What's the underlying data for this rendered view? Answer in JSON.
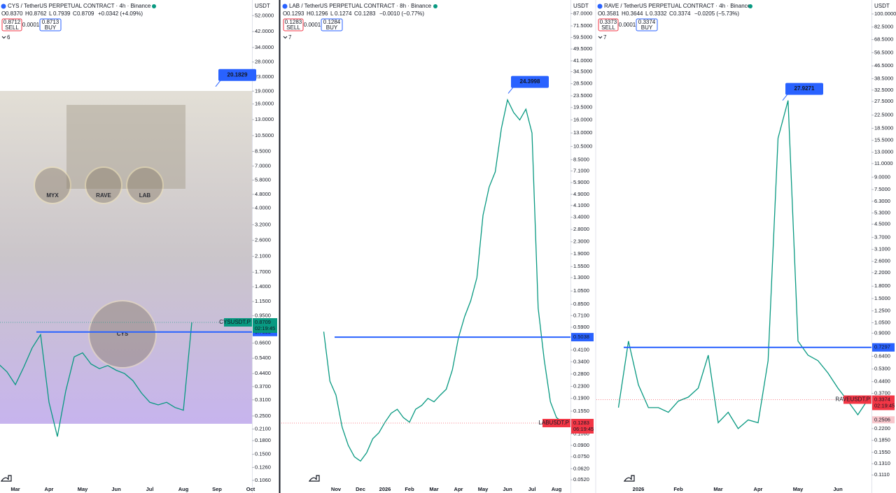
{
  "ui": {
    "sell": "SELL",
    "buy": "BUY",
    "ohlc_labels": [
      "O",
      "H",
      "L",
      "C"
    ]
  },
  "chart_data": [
    {
      "type": "line",
      "title": "CYS / TetherUS PERPETUAL CONTRACT · 4h · Binance",
      "ohlc": [
        "0.8370",
        "0.8762",
        "0.7939",
        "0.8709"
      ],
      "change": "+0.0342 (+4.09%)",
      "sell": "0.8712",
      "spread": "0.0001",
      "buy": "0.8713",
      "interval": "6",
      "currency": "USDT",
      "log": true,
      "ylim": [
        0.103,
        64
      ],
      "yticks": [
        {
          "value": 52,
          "label": "52.0000"
        },
        {
          "value": 42,
          "label": "42.0000"
        },
        {
          "value": 34,
          "label": "34.0000"
        },
        {
          "value": 28,
          "label": "28.0000"
        },
        {
          "value": 23,
          "label": "23.0000"
        },
        {
          "value": 19,
          "label": "19.0000"
        },
        {
          "value": 16,
          "label": "16.0000"
        },
        {
          "value": 13,
          "label": "13.0000"
        },
        {
          "value": 10.5,
          "label": "10.5000"
        },
        {
          "value": 8.5,
          "label": "8.5000"
        },
        {
          "value": 7,
          "label": "7.0000"
        },
        {
          "value": 5.8,
          "label": "5.8000"
        },
        {
          "value": 4.8,
          "label": "4.8000"
        },
        {
          "value": 4,
          "label": "4.0000"
        },
        {
          "value": 3.2,
          "label": "3.2000"
        },
        {
          "value": 2.6,
          "label": "2.6000"
        },
        {
          "value": 2.1,
          "label": "2.1000"
        },
        {
          "value": 1.7,
          "label": "1.7000"
        },
        {
          "value": 1.4,
          "label": "1.4000"
        },
        {
          "value": 1.15,
          "label": "1.1500"
        },
        {
          "value": 0.95,
          "label": "0.9500"
        },
        {
          "value": 0.66,
          "label": "0.6600"
        },
        {
          "value": 0.54,
          "label": "0.5400"
        },
        {
          "value": 0.44,
          "label": "0.4400"
        },
        {
          "value": 0.37,
          "label": "0.3700"
        },
        {
          "value": 0.31,
          "label": "0.3100"
        },
        {
          "value": 0.25,
          "label": "0.2500"
        },
        {
          "value": 0.21,
          "label": "0.2100"
        },
        {
          "value": 0.18,
          "label": "0.1800"
        },
        {
          "value": 0.15,
          "label": "0.1500"
        },
        {
          "value": 0.126,
          "label": "0.1260"
        },
        {
          "value": 0.106,
          "label": "0.1060"
        }
      ],
      "categories": [
        null,
        null,
        "Mar",
        null,
        null,
        null,
        "Apr",
        null,
        null,
        null,
        "May",
        null,
        null,
        null,
        "Jun",
        null,
        null,
        null,
        "Jul",
        null,
        null,
        null,
        "Aug",
        null,
        null,
        null,
        "Sep",
        null,
        null,
        null,
        "Oct"
      ],
      "series": [
        {
          "name": "CYSUSDT.P",
          "color": "#089981",
          "values": [
            0.5,
            0.45,
            0.38,
            0.48,
            0.62,
            0.74,
            0.3,
            0.19,
            0.35,
            0.55,
            0.58,
            0.5,
            0.47,
            0.49,
            0.46,
            0.44,
            0.4,
            0.34,
            0.3,
            0.29,
            0.3,
            0.28,
            0.27,
            0.8709,
            null,
            null,
            null,
            null,
            null,
            null,
            null
          ]
        }
      ],
      "level": 0.7658,
      "last_price": 0.8709,
      "last_color": "#089981",
      "countdown": "02:19:45",
      "peak": 20.1829,
      "image_text": [
        "MYX",
        "RAVE",
        "LAB",
        "CYS"
      ]
    },
    {
      "type": "line",
      "title": "LAB / TetherUS PERPETUAL CONTRACT · 8h · Binance",
      "ohlc": [
        "0.1293",
        "0.1296",
        "0.1274",
        "0.1283"
      ],
      "change": "−0.0010 (−0.77%)",
      "sell": "0.1283",
      "spread": "0.0001",
      "buy": "0.1284",
      "interval": "7",
      "currency": "USDT",
      "log": true,
      "ylim": [
        0.0498,
        108
      ],
      "yticks": [
        {
          "value": 87,
          "label": "87.0000"
        },
        {
          "value": 71.5,
          "label": "71.5000"
        },
        {
          "value": 59.5,
          "label": "59.5000"
        },
        {
          "value": 49.5,
          "label": "49.5000"
        },
        {
          "value": 41,
          "label": "41.0000"
        },
        {
          "value": 34.5,
          "label": "34.5000"
        },
        {
          "value": 28.5,
          "label": "28.5000"
        },
        {
          "value": 23.5,
          "label": "23.5000"
        },
        {
          "value": 19.5,
          "label": "19.5000"
        },
        {
          "value": 16,
          "label": "16.0000"
        },
        {
          "value": 13,
          "label": "13.0000"
        },
        {
          "value": 10.5,
          "label": "10.5000"
        },
        {
          "value": 8.5,
          "label": "8.5000"
        },
        {
          "value": 7.1,
          "label": "7.1000"
        },
        {
          "value": 5.9,
          "label": "5.9000"
        },
        {
          "value": 4.9,
          "label": "4.9000"
        },
        {
          "value": 4.1,
          "label": "4.1000"
        },
        {
          "value": 3.4,
          "label": "3.4000"
        },
        {
          "value": 2.8,
          "label": "2.8000"
        },
        {
          "value": 2.3,
          "label": "2.3000"
        },
        {
          "value": 1.9,
          "label": "1.9000"
        },
        {
          "value": 1.55,
          "label": "1.5500"
        },
        {
          "value": 1.3,
          "label": "1.3000"
        },
        {
          "value": 1.05,
          "label": "1.0500"
        },
        {
          "value": 0.85,
          "label": "0.8500"
        },
        {
          "value": 0.71,
          "label": "0.7100"
        },
        {
          "value": 0.59,
          "label": "0.5900"
        },
        {
          "value": 0.41,
          "label": "0.4100"
        },
        {
          "value": 0.34,
          "label": "0.3400"
        },
        {
          "value": 0.28,
          "label": "0.2800"
        },
        {
          "value": 0.23,
          "label": "0.2300"
        },
        {
          "value": 0.19,
          "label": "0.1900"
        },
        {
          "value": 0.155,
          "label": "0.1550"
        },
        {
          "value": 0.108,
          "label": "0.1080"
        },
        {
          "value": 0.09,
          "label": "0.0900"
        },
        {
          "value": 0.075,
          "label": "0.0750"
        },
        {
          "value": 0.062,
          "label": "0.0620"
        },
        {
          "value": 0.052,
          "label": "0.0520"
        }
      ],
      "categories": [
        null,
        null,
        "Nov",
        null,
        null,
        null,
        "Dec",
        null,
        null,
        null,
        "2026",
        null,
        null,
        null,
        "Feb",
        null,
        null,
        null,
        "Mar",
        null,
        null,
        null,
        "Apr",
        null,
        null,
        null,
        "May",
        null,
        null,
        null,
        "Jun",
        null,
        null,
        null,
        "Jul",
        null,
        null,
        null,
        "Aug",
        null,
        null
      ],
      "series": [
        {
          "name": "LABUSDT.P",
          "color": "#089981",
          "values": [
            0.55,
            0.25,
            0.2,
            0.12,
            0.09,
            0.075,
            0.07,
            0.08,
            0.1,
            0.11,
            0.13,
            0.15,
            0.16,
            0.14,
            0.13,
            0.16,
            0.17,
            0.19,
            0.18,
            0.2,
            0.22,
            0.3,
            0.5,
            0.7,
            0.9,
            1.3,
            3.5,
            5.5,
            7,
            14,
            22,
            18,
            16,
            19,
            13,
            0.8,
            0.35,
            0.18,
            0.14,
            0.13,
            0.1283
          ]
        }
      ],
      "level": 0.5038,
      "last_price": 0.1283,
      "last_color": "#f23645",
      "countdown": "06:19:45",
      "peak": 24.3998
    },
    {
      "type": "line",
      "title": "RAVE / TetherUS PERPETUAL CONTRACT · 4h · Binance",
      "ohlc": [
        "0.3581",
        "0.3644",
        "0.3332",
        "0.3374"
      ],
      "change": "−0.0205 (−5.73%)",
      "sell": "0.3373",
      "spread": "0.0001",
      "buy": "0.3374",
      "interval": "7",
      "currency": "USDT",
      "log": true,
      "ylim": [
        0.0993,
        122.9
      ],
      "yticks": [
        {
          "value": 100,
          "label": "100.0000"
        },
        {
          "value": 82.5,
          "label": "82.5000"
        },
        {
          "value": 68.5,
          "label": "68.5000"
        },
        {
          "value": 56.5,
          "label": "56.5000"
        },
        {
          "value": 46.5,
          "label": "46.5000"
        },
        {
          "value": 38.5,
          "label": "38.5000"
        },
        {
          "value": 32.5,
          "label": "32.5000"
        },
        {
          "value": 27.5,
          "label": "27.5000"
        },
        {
          "value": 22.5,
          "label": "22.5000"
        },
        {
          "value": 18.5,
          "label": "18.5000"
        },
        {
          "value": 15.5,
          "label": "15.5000"
        },
        {
          "value": 13,
          "label": "13.0000"
        },
        {
          "value": 11,
          "label": "11.0000"
        },
        {
          "value": 9,
          "label": "9.0000"
        },
        {
          "value": 7.5,
          "label": "7.5000"
        },
        {
          "value": 6.3,
          "label": "6.3000"
        },
        {
          "value": 5.3,
          "label": "5.3000"
        },
        {
          "value": 4.5,
          "label": "4.5000"
        },
        {
          "value": 3.7,
          "label": "3.7000"
        },
        {
          "value": 3.1,
          "label": "3.1000"
        },
        {
          "value": 2.6,
          "label": "2.6000"
        },
        {
          "value": 2.2,
          "label": "2.2000"
        },
        {
          "value": 1.8,
          "label": "1.8000"
        },
        {
          "value": 1.5,
          "label": "1.5000"
        },
        {
          "value": 1.25,
          "label": "1.2500"
        },
        {
          "value": 1.05,
          "label": "1.0500"
        },
        {
          "value": 0.9,
          "label": "0.9000"
        },
        {
          "value": 0.64,
          "label": "0.6400"
        },
        {
          "value": 0.53,
          "label": "0.5300"
        },
        {
          "value": 0.44,
          "label": "0.4400"
        },
        {
          "value": 0.37,
          "label": "0.3700"
        },
        {
          "value": 0.22,
          "label": "0.2200"
        },
        {
          "value": 0.185,
          "label": "0.1850"
        },
        {
          "value": 0.155,
          "label": "0.1550"
        },
        {
          "value": 0.131,
          "label": "0.1310"
        },
        {
          "value": 0.111,
          "label": "0.1110"
        }
      ],
      "categories": [
        null,
        null,
        "2026",
        null,
        null,
        null,
        "Feb",
        null,
        null,
        null,
        "Mar",
        null,
        null,
        null,
        "Apr",
        null,
        null,
        null,
        "May",
        null,
        null,
        null,
        "Jun",
        null,
        null,
        null
      ],
      "series": [
        {
          "name": "RAVEUSDT.P",
          "color": "#089981",
          "values": [
            0.3,
            0.8,
            0.42,
            0.3,
            0.3,
            0.28,
            0.33,
            0.35,
            0.4,
            0.65,
            0.24,
            0.28,
            0.22,
            0.25,
            0.24,
            0.6,
            16,
            27.9,
            0.8,
            0.65,
            0.6,
            0.5,
            0.4,
            0.33,
            0.27,
            0.3374
          ]
        }
      ],
      "level": 0.7297,
      "last_price": 0.3374,
      "last_color": "#f23645",
      "countdown": "02:19:45",
      "peak": 27.9271,
      "low_marker": 0.2506
    }
  ]
}
